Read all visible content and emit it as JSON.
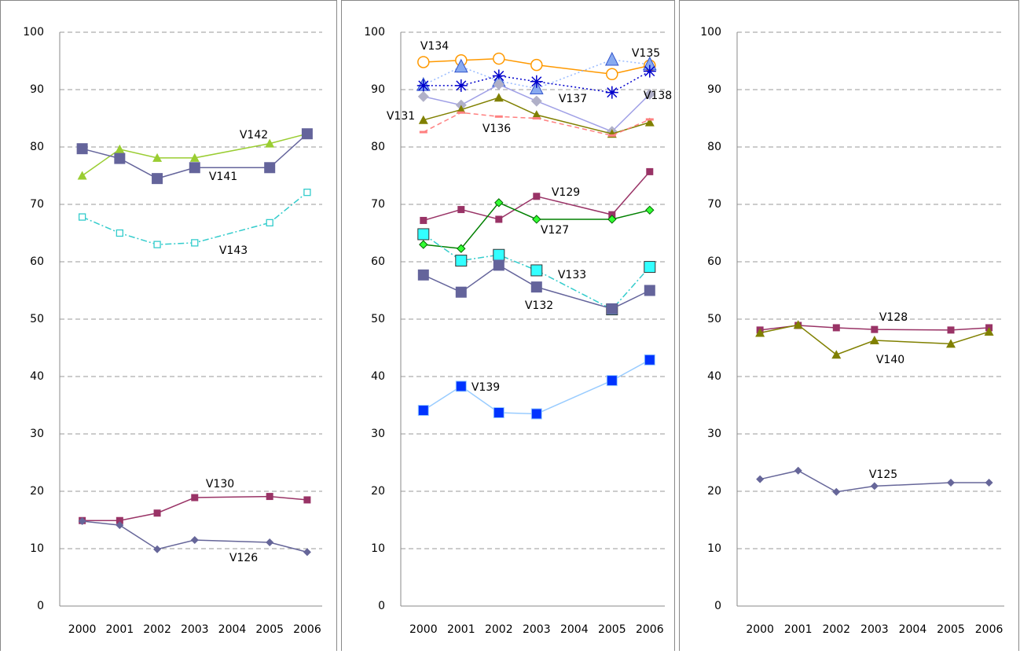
{
  "chart_data": [
    {
      "type": "line",
      "x": [
        2000,
        2001,
        2002,
        2003,
        2005,
        2006
      ],
      "xlim": [
        1999.4,
        2006.4
      ],
      "xticks": [
        2000,
        2001,
        2002,
        2003,
        2004,
        2005,
        2006
      ],
      "ylim": [
        0,
        100
      ],
      "yticks": [
        0,
        10,
        20,
        30,
        40,
        50,
        60,
        70,
        80,
        90,
        100
      ],
      "grid": true,
      "series": [
        {
          "name": "V142",
          "color": "#9acd32",
          "marker": "triangle",
          "dash": "solid",
          "values": [
            75,
            79.6,
            78.1,
            78.1,
            80.6,
            82.3
          ]
        },
        {
          "name": "V141",
          "color": "#64649b",
          "marker": "square",
          "dash": "solid",
          "values": [
            79.7,
            78,
            74.5,
            76.4,
            76.4,
            82.3
          ]
        },
        {
          "name": "V143",
          "color": "#33cccc",
          "marker": "open-square",
          "dash": "dashdot",
          "values": [
            67.8,
            65,
            63,
            63.3,
            66.8,
            72.1
          ]
        },
        {
          "name": "V130",
          "color": "#993366",
          "marker": "small-square",
          "dash": "solid",
          "values": [
            14.9,
            14.9,
            16.2,
            18.9,
            19.1,
            18.5
          ]
        },
        {
          "name": "V126",
          "color": "#666699",
          "marker": "diamond",
          "dash": "solid",
          "values": [
            14.8,
            14.1,
            9.9,
            11.5,
            11.1,
            9.4
          ]
        }
      ]
    },
    {
      "type": "line",
      "x": [
        2000,
        2001,
        2002,
        2003,
        2005,
        2006
      ],
      "xlim": [
        1999.4,
        2006.4
      ],
      "xticks": [
        2000,
        2001,
        2002,
        2003,
        2004,
        2005,
        2006
      ],
      "ylim": [
        0,
        100
      ],
      "yticks": [
        0,
        10,
        20,
        30,
        40,
        50,
        60,
        70,
        80,
        90,
        100
      ],
      "grid": true,
      "series": [
        {
          "name": "V134",
          "color": "#ff9900",
          "marker": "circle",
          "dash": "solid",
          "values": [
            94.8,
            95.1,
            95.4,
            94.3,
            92.7,
            94.2
          ]
        },
        {
          "name": "V135",
          "color": "#99bbff",
          "marker": "triangle-big",
          "dash": "dotted",
          "values": [
            90.8,
            94,
            91.5,
            90.2,
            95.2,
            94.4
          ]
        },
        {
          "name": "V137",
          "color": "#0000cc",
          "marker": "asterisk",
          "dash": "dotted",
          "values": [
            90.7,
            90.7,
            92.4,
            91.4,
            89.5,
            93.2
          ]
        },
        {
          "name": "V138",
          "color": "#a0a0e6",
          "marker": "diamond-grey",
          "dash": "solid",
          "values": [
            88.8,
            87.3,
            90.9,
            88,
            82.7,
            89.2
          ]
        },
        {
          "name": "V131",
          "color": "#808000",
          "marker": "triangle",
          "dash": "solid",
          "values": [
            84.7,
            86.5,
            88.6,
            85.6,
            82.3,
            84.3
          ]
        },
        {
          "name": "V136",
          "color": "#ff8080",
          "marker": "dash",
          "dash": "dashed",
          "values": [
            82.6,
            86,
            85.3,
            85,
            82,
            84.8
          ]
        },
        {
          "name": "V129",
          "color": "#993366",
          "marker": "small-square",
          "dash": "solid",
          "values": [
            67.2,
            69.1,
            67.4,
            71.4,
            68.2,
            75.7
          ]
        },
        {
          "name": "V127",
          "color": "#008000",
          "marker": "diamond-green",
          "dash": "solid",
          "values": [
            63,
            62.3,
            70.3,
            67.4,
            67.4,
            69
          ]
        },
        {
          "name": "V133",
          "color": "#33cccc",
          "marker": "cyan-square",
          "dash": "dashdot",
          "values": [
            64.8,
            60.2,
            61.2,
            58.5,
            51.7,
            59.1
          ]
        },
        {
          "name": "V132",
          "color": "#64649b",
          "marker": "square",
          "dash": "solid",
          "values": [
            57.7,
            54.7,
            59.4,
            55.6,
            51.8,
            55
          ]
        },
        {
          "name": "V139",
          "color": "#99ccff",
          "marker": "blue-square",
          "dash": "solid",
          "values": [
            34.1,
            38.3,
            33.7,
            33.5,
            39.3,
            42.9
          ]
        }
      ]
    },
    {
      "type": "line",
      "x": [
        2000,
        2001,
        2002,
        2003,
        2005,
        2006
      ],
      "xlim": [
        1999.4,
        2006.4
      ],
      "xticks": [
        2000,
        2001,
        2002,
        2003,
        2004,
        2005,
        2006
      ],
      "ylim": [
        0,
        100
      ],
      "yticks": [
        0,
        10,
        20,
        30,
        40,
        50,
        60,
        70,
        80,
        90,
        100
      ],
      "grid": true,
      "series": [
        {
          "name": "V128",
          "color": "#993366",
          "marker": "small-square",
          "dash": "solid",
          "values": [
            48.1,
            48.9,
            48.5,
            48.2,
            48.1,
            48.5
          ]
        },
        {
          "name": "V140",
          "color": "#808000",
          "marker": "triangle",
          "dash": "solid",
          "values": [
            47.6,
            49,
            43.8,
            46.3,
            45.7,
            47.8
          ]
        },
        {
          "name": "V125",
          "color": "#666699",
          "marker": "diamond",
          "dash": "solid",
          "values": [
            22.1,
            23.6,
            19.9,
            20.9,
            21.5,
            21.5
          ]
        }
      ]
    }
  ]
}
